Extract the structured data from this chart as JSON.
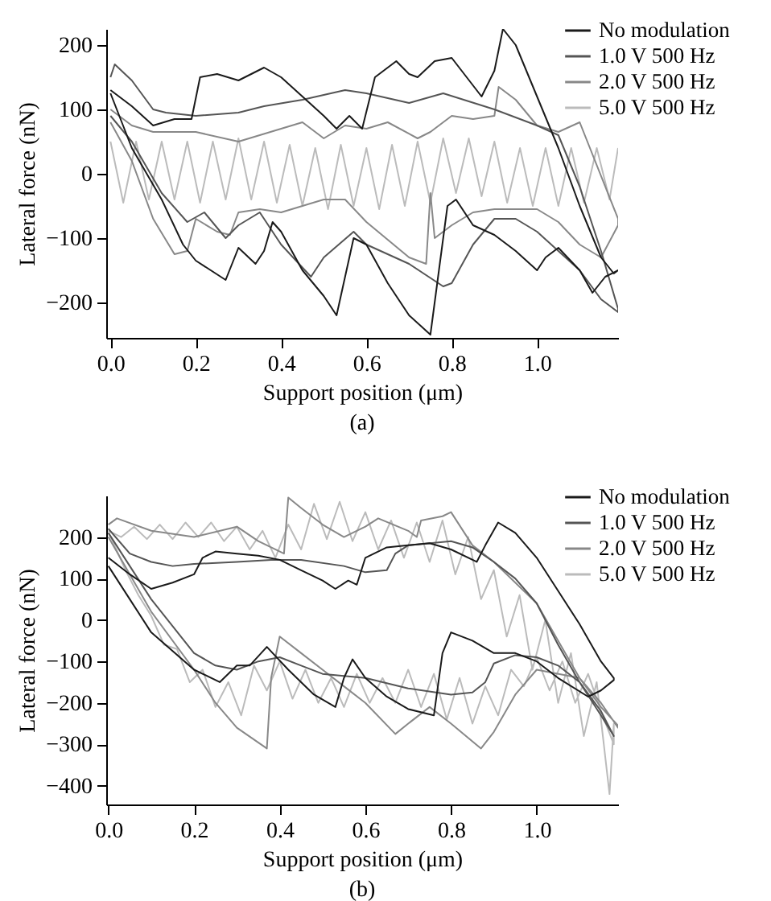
{
  "chart_data": [
    {
      "type": "line",
      "xlabel": "Support position (μm)",
      "ylabel": "Lateral force (nN)",
      "annotations": [
        "(a)"
      ],
      "legend": "top right",
      "xlim": [
        -0.01,
        1.19
      ],
      "xticks": [
        {
          "value": 0,
          "label": "0.0"
        },
        {
          "value": 0.2,
          "label": "0.2"
        },
        {
          "value": 0.4,
          "label": "0.4"
        },
        {
          "value": 0.6,
          "label": "0.6"
        },
        {
          "value": 0.8,
          "label": "0.8"
        },
        {
          "value": 1,
          "label": "1.0"
        }
      ],
      "ylim": [
        -255,
        225
      ],
      "yticks": [
        -200,
        -100,
        0,
        100,
        200
      ],
      "series": [
        {
          "name": "No modulation",
          "color": "#1a1a1a",
          "x": [
            0,
            0.05,
            0.1,
            0.15,
            0.19,
            0.21,
            0.25,
            0.3,
            0.36,
            0.4,
            0.45,
            0.5,
            0.53,
            0.56,
            0.59,
            0.62,
            0.67,
            0.7,
            0.72,
            0.76,
            0.8,
            0.87,
            0.9,
            0.92,
            0.95,
            1.0,
            1.05,
            1.1,
            1.15,
            1.18,
            1.19,
            1.16,
            1.13,
            1.1,
            1.05,
            1.02,
            1.0,
            0.95,
            0.9,
            0.85,
            0.81,
            0.79,
            0.77,
            0.75,
            0.7,
            0.65,
            0.6,
            0.57,
            0.53,
            0.5,
            0.45,
            0.4,
            0.38,
            0.36,
            0.34,
            0.3,
            0.27,
            0.2,
            0.17,
            0.12,
            0.05,
            0
          ],
          "values": [
            130,
            105,
            75,
            85,
            85,
            150,
            155,
            145,
            165,
            150,
            120,
            90,
            70,
            90,
            70,
            150,
            175,
            155,
            150,
            175,
            180,
            120,
            160,
            225,
            200,
            120,
            40,
            -50,
            -130,
            -155,
            -150,
            -160,
            -185,
            -150,
            -115,
            -130,
            -150,
            -120,
            -95,
            -80,
            -40,
            -50,
            -150,
            -250,
            -220,
            -170,
            -110,
            -100,
            -220,
            -190,
            -150,
            -90,
            -75,
            -120,
            -140,
            -115,
            -165,
            -135,
            -110,
            -40,
            40,
            125
          ]
        },
        {
          "name": "1.0 V 500 Hz",
          "color": "#555555",
          "x": [
            0,
            0.01,
            0.05,
            0.1,
            0.13,
            0.2,
            0.3,
            0.36,
            0.45,
            0.55,
            0.6,
            0.7,
            0.78,
            0.9,
            1.0,
            1.05,
            1.1,
            1.15,
            1.19,
            1.19,
            1.15,
            1.1,
            1.0,
            0.95,
            0.9,
            0.85,
            0.8,
            0.78,
            0.7,
            0.6,
            0.57,
            0.5,
            0.47,
            0.4,
            0.35,
            0.3,
            0.27,
            0.22,
            0.18,
            0.12,
            0.05,
            0
          ],
          "values": [
            150,
            170,
            145,
            100,
            95,
            90,
            95,
            105,
            115,
            130,
            125,
            110,
            125,
            100,
            75,
            60,
            -20,
            -120,
            -210,
            -215,
            -195,
            -150,
            -90,
            -70,
            -70,
            -110,
            -170,
            -175,
            -140,
            -110,
            -90,
            -130,
            -160,
            -110,
            -60,
            -80,
            -100,
            -60,
            -75,
            -30,
            50,
            90
          ]
        },
        {
          "name": "2.0 V 500 Hz",
          "color": "#888888",
          "x": [
            0,
            0.05,
            0.1,
            0.2,
            0.3,
            0.35,
            0.4,
            0.45,
            0.5,
            0.55,
            0.6,
            0.65,
            0.72,
            0.75,
            0.8,
            0.85,
            0.9,
            0.91,
            0.95,
            1.0,
            1.05,
            1.1,
            1.13,
            1.19,
            1.19,
            1.15,
            1.1,
            1.05,
            1.0,
            0.9,
            0.85,
            0.8,
            0.76,
            0.75,
            0.74,
            0.7,
            0.6,
            0.55,
            0.5,
            0.45,
            0.4,
            0.35,
            0.3,
            0.28,
            0.25,
            0.2,
            0.18,
            0.15,
            0.1,
            0.05,
            0
          ],
          "values": [
            100,
            75,
            65,
            65,
            50,
            60,
            70,
            80,
            55,
            75,
            70,
            80,
            55,
            65,
            90,
            85,
            90,
            135,
            115,
            75,
            65,
            80,
            30,
            -70,
            -80,
            -130,
            -110,
            -75,
            -55,
            -55,
            -60,
            -80,
            -100,
            -30,
            -140,
            -130,
            -75,
            -40,
            -40,
            -50,
            -60,
            -55,
            -60,
            -95,
            -90,
            -70,
            -120,
            -125,
            -70,
            20,
            80
          ]
        },
        {
          "name": "5.0 V 500 Hz",
          "color": "#bbbbbb",
          "x": [
            0,
            0.03,
            0.06,
            0.09,
            0.12,
            0.15,
            0.18,
            0.21,
            0.24,
            0.27,
            0.3,
            0.33,
            0.36,
            0.39,
            0.42,
            0.45,
            0.48,
            0.51,
            0.54,
            0.57,
            0.6,
            0.63,
            0.66,
            0.69,
            0.72,
            0.75,
            0.78,
            0.81,
            0.84,
            0.87,
            0.9,
            0.93,
            0.96,
            0.99,
            1.02,
            1.05,
            1.08,
            1.11,
            1.14,
            1.17,
            1.19
          ],
          "values": [
            50,
            -45,
            50,
            -40,
            50,
            -40,
            50,
            -45,
            50,
            -40,
            55,
            -40,
            50,
            -45,
            45,
            -50,
            40,
            -55,
            45,
            -50,
            40,
            -55,
            45,
            -50,
            50,
            -45,
            55,
            -30,
            55,
            -35,
            50,
            -45,
            40,
            -50,
            40,
            -50,
            40,
            -45,
            40,
            -40,
            40
          ]
        }
      ]
    },
    {
      "type": "line",
      "xlabel": "Support position (μm)",
      "ylabel": "Lateral force (nN)",
      "annotations": [
        "(b)"
      ],
      "legend": "top right",
      "xlim": [
        -0.005,
        1.19
      ],
      "xticks": [
        {
          "value": 0,
          "label": "0.0"
        },
        {
          "value": 0.2,
          "label": "0.2"
        },
        {
          "value": 0.4,
          "label": "0.4"
        },
        {
          "value": 0.6,
          "label": "0.6"
        },
        {
          "value": 0.8,
          "label": "0.8"
        },
        {
          "value": 1,
          "label": "1.0"
        }
      ],
      "ylim": [
        -445,
        300
      ],
      "yticks": [
        -400,
        -300,
        -200,
        -100,
        0,
        100,
        200
      ],
      "series": [
        {
          "name": "No modulation",
          "color": "#1a1a1a",
          "x": [
            0,
            0.05,
            0.1,
            0.15,
            0.2,
            0.22,
            0.25,
            0.3,
            0.35,
            0.4,
            0.45,
            0.5,
            0.53,
            0.56,
            0.58,
            0.6,
            0.65,
            0.7,
            0.75,
            0.8,
            0.86,
            0.88,
            0.91,
            0.95,
            1.0,
            1.05,
            1.1,
            1.15,
            1.18,
            1.18,
            1.15,
            1.12,
            1.05,
            1.0,
            0.95,
            0.9,
            0.85,
            0.8,
            0.78,
            0.76,
            0.7,
            0.65,
            0.6,
            0.57,
            0.55,
            0.53,
            0.48,
            0.42,
            0.37,
            0.33,
            0.3,
            0.26,
            0.2,
            0.1,
            0.05,
            0
          ],
          "values": [
            150,
            110,
            75,
            90,
            110,
            150,
            165,
            160,
            155,
            145,
            120,
            95,
            75,
            95,
            85,
            150,
            175,
            180,
            185,
            170,
            140,
            180,
            235,
            210,
            150,
            70,
            -10,
            -100,
            -140,
            -145,
            -170,
            -185,
            -140,
            -100,
            -80,
            -80,
            -50,
            -30,
            -80,
            -230,
            -215,
            -185,
            -140,
            -95,
            -140,
            -210,
            -180,
            -120,
            -65,
            -110,
            -110,
            -150,
            -120,
            -30,
            50,
            130
          ]
        },
        {
          "name": "1.0 V 500 Hz",
          "color": "#555555",
          "x": [
            0,
            0.05,
            0.1,
            0.15,
            0.2,
            0.3,
            0.38,
            0.45,
            0.55,
            0.6,
            0.65,
            0.67,
            0.7,
            0.8,
            0.85,
            0.9,
            0.95,
            1.0,
            1.05,
            1.1,
            1.15,
            1.18,
            1.18,
            1.15,
            1.1,
            1.05,
            1.0,
            0.95,
            0.9,
            0.88,
            0.85,
            0.8,
            0.7,
            0.6,
            0.5,
            0.45,
            0.4,
            0.35,
            0.3,
            0.25,
            0.2,
            0.1,
            0.05,
            0
          ],
          "values": [
            220,
            160,
            140,
            130,
            135,
            140,
            145,
            145,
            130,
            115,
            120,
            160,
            180,
            190,
            175,
            140,
            100,
            40,
            -60,
            -150,
            -230,
            -280,
            -280,
            -220,
            -150,
            -110,
            -90,
            -85,
            -105,
            -150,
            -175,
            -180,
            -165,
            -140,
            -130,
            -110,
            -90,
            -100,
            -120,
            -110,
            -80,
            50,
            130,
            210
          ]
        },
        {
          "name": "2.0 V 500 Hz",
          "color": "#888888",
          "x": [
            0,
            0.02,
            0.1,
            0.2,
            0.3,
            0.35,
            0.41,
            0.42,
            0.45,
            0.5,
            0.55,
            0.6,
            0.63,
            0.7,
            0.72,
            0.73,
            0.78,
            0.8,
            0.85,
            0.9,
            0.95,
            1.0,
            1.05,
            1.1,
            1.15,
            1.19,
            1.19,
            1.15,
            1.1,
            1.0,
            0.95,
            0.9,
            0.87,
            0.8,
            0.75,
            0.7,
            0.67,
            0.6,
            0.55,
            0.5,
            0.45,
            0.4,
            0.38,
            0.37,
            0.3,
            0.25,
            0.2,
            0.1,
            0.05,
            0
          ],
          "values": [
            230,
            245,
            215,
            200,
            225,
            190,
            160,
            295,
            270,
            230,
            200,
            225,
            245,
            215,
            200,
            240,
            250,
            260,
            180,
            140,
            90,
            40,
            -50,
            -140,
            -210,
            -255,
            -260,
            -200,
            -140,
            -120,
            -180,
            -270,
            -310,
            -250,
            -210,
            -250,
            -275,
            -200,
            -160,
            -120,
            -80,
            -40,
            -140,
            -310,
            -260,
            -200,
            -120,
            20,
            110,
            200
          ]
        },
        {
          "name": "5.0 V 500 Hz",
          "color": "#bbbbbb",
          "x": [
            0,
            0.03,
            0.06,
            0.09,
            0.12,
            0.15,
            0.18,
            0.21,
            0.24,
            0.27,
            0.3,
            0.33,
            0.36,
            0.39,
            0.42,
            0.45,
            0.48,
            0.51,
            0.54,
            0.57,
            0.6,
            0.63,
            0.66,
            0.69,
            0.72,
            0.75,
            0.78,
            0.81,
            0.84,
            0.87,
            0.9,
            0.93,
            0.96,
            0.99,
            1.02,
            1.05,
            1.08,
            1.11,
            1.14,
            1.17,
            1.18,
            1.18,
            1.15,
            1.12,
            1.09,
            1.06,
            1.03,
            1.0,
            0.97,
            0.94,
            0.91,
            0.88,
            0.85,
            0.82,
            0.79,
            0.76,
            0.73,
            0.7,
            0.67,
            0.64,
            0.61,
            0.58,
            0.55,
            0.52,
            0.49,
            0.46,
            0.43,
            0.4,
            0.37,
            0.34,
            0.31,
            0.28,
            0.25,
            0.22,
            0.19,
            0.16,
            0.13,
            0.1,
            0.07,
            0.04,
            0.01,
            0
          ],
          "values": [
            215,
            200,
            225,
            195,
            230,
            195,
            235,
            200,
            235,
            190,
            225,
            170,
            215,
            150,
            230,
            170,
            280,
            195,
            285,
            190,
            260,
            170,
            240,
            150,
            235,
            140,
            240,
            110,
            200,
            50,
            120,
            -40,
            60,
            -120,
            0,
            -200,
            -80,
            -280,
            -150,
            -420,
            -250,
            -300,
            -220,
            -130,
            -200,
            -100,
            -170,
            -90,
            -160,
            -120,
            -230,
            -160,
            -250,
            -140,
            -240,
            -130,
            -210,
            -120,
            -200,
            -140,
            -200,
            -130,
            -210,
            -140,
            -200,
            -120,
            -190,
            -100,
            -170,
            -110,
            -230,
            -150,
            -210,
            -120,
            -150,
            -70,
            -60,
            10,
            60,
            120,
            190,
            210
          ]
        }
      ]
    }
  ]
}
